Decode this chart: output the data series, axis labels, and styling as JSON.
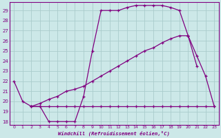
{
  "xlabel": "Windchill (Refroidissement éolien,°C)",
  "bg_color": "#cce8e8",
  "grid_color": "#aacccc",
  "line_color": "#800080",
  "xlim": [
    -0.5,
    23.5
  ],
  "ylim": [
    17.7,
    29.8
  ],
  "xticks": [
    0,
    1,
    2,
    3,
    4,
    5,
    6,
    7,
    8,
    9,
    10,
    11,
    12,
    13,
    14,
    15,
    16,
    17,
    18,
    19,
    20,
    21,
    22,
    23
  ],
  "yticks": [
    18,
    19,
    20,
    21,
    22,
    23,
    24,
    25,
    26,
    27,
    28,
    29
  ],
  "line1_x": [
    0,
    1,
    2,
    3,
    4,
    5,
    6,
    7,
    8,
    9,
    10,
    11,
    12,
    13,
    14,
    15,
    16,
    17,
    18,
    19,
    20,
    21
  ],
  "line1_y": [
    22,
    20,
    19.5,
    19.5,
    18,
    18,
    18,
    18,
    20.5,
    25,
    29,
    29,
    29,
    29.3,
    29.5,
    29.5,
    29.5,
    29.5,
    29.3,
    29,
    26.5,
    23.5
  ],
  "line2_x": [
    2,
    3,
    4,
    5,
    6,
    7,
    8,
    9,
    10,
    11,
    12,
    13,
    14,
    15,
    16,
    17,
    18,
    19,
    20
  ],
  "line2_y": [
    19.5,
    19.8,
    20.2,
    20.5,
    21.0,
    21.2,
    21.5,
    22.0,
    22.5,
    23.0,
    23.5,
    24.0,
    24.5,
    25.0,
    25.3,
    25.8,
    26.2,
    26.5,
    26.5
  ],
  "line3_x": [
    2,
    3,
    4,
    5,
    6,
    7,
    8,
    9,
    10,
    11,
    12,
    13,
    14,
    15,
    16,
    17,
    18,
    19,
    20,
    21,
    22,
    23
  ],
  "line3_y": [
    19.5,
    19.5,
    19.5,
    19.5,
    19.5,
    19.5,
    19.5,
    19.5,
    19.5,
    19.5,
    19.5,
    19.5,
    19.5,
    19.5,
    19.5,
    19.5,
    19.5,
    19.5,
    19.5,
    19.5,
    19.5,
    19.5
  ],
  "line4_x": [
    20,
    21,
    22,
    23
  ],
  "line4_y": [
    26.5,
    24.5,
    22.5,
    19.5
  ]
}
